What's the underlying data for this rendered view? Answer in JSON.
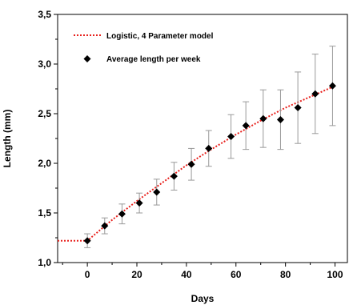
{
  "chart_data": {
    "type": "scatter",
    "title": "",
    "xlabel": "Days",
    "ylabel": "Length (mm)",
    "xlim": [
      -12,
      105
    ],
    "ylim": [
      1.0,
      3.5
    ],
    "x_ticks": [
      0,
      20,
      40,
      60,
      80,
      100
    ],
    "y_ticks": [
      1.0,
      1.5,
      2.0,
      2.5,
      3.0,
      3.5
    ],
    "x_tick_labels": [
      "0",
      "20",
      "40",
      "60",
      "80",
      "100"
    ],
    "y_tick_labels": [
      "1,0",
      "1,5",
      "2,0",
      "2,5",
      "3,0",
      "3,5"
    ],
    "grid": false,
    "legend_position": "top-left",
    "series": [
      {
        "name": "Logistic, 4 Parameter model",
        "kind": "line",
        "color": "#e8211d",
        "style": "dotted",
        "x": [
          -12,
          0,
          10,
          20,
          30,
          40,
          50,
          60,
          70,
          80,
          90,
          100
        ],
        "y": [
          1.22,
          1.22,
          1.43,
          1.62,
          1.8,
          1.98,
          2.14,
          2.29,
          2.43,
          2.56,
          2.67,
          2.78
        ]
      },
      {
        "name": "Average length per week",
        "kind": "scatter",
        "marker": "diamond",
        "color": "#000000",
        "error_color": "#999999",
        "x": [
          0,
          7,
          14,
          21,
          28,
          35,
          42,
          49,
          58,
          64,
          71,
          78,
          85,
          92,
          99
        ],
        "y": [
          1.22,
          1.37,
          1.49,
          1.6,
          1.71,
          1.87,
          1.99,
          2.15,
          2.27,
          2.38,
          2.45,
          2.44,
          2.56,
          2.7,
          2.78
        ],
        "err": [
          0.07,
          0.08,
          0.1,
          0.1,
          0.13,
          0.14,
          0.16,
          0.18,
          0.22,
          0.24,
          0.29,
          0.3,
          0.36,
          0.4,
          0.4
        ]
      }
    ]
  }
}
